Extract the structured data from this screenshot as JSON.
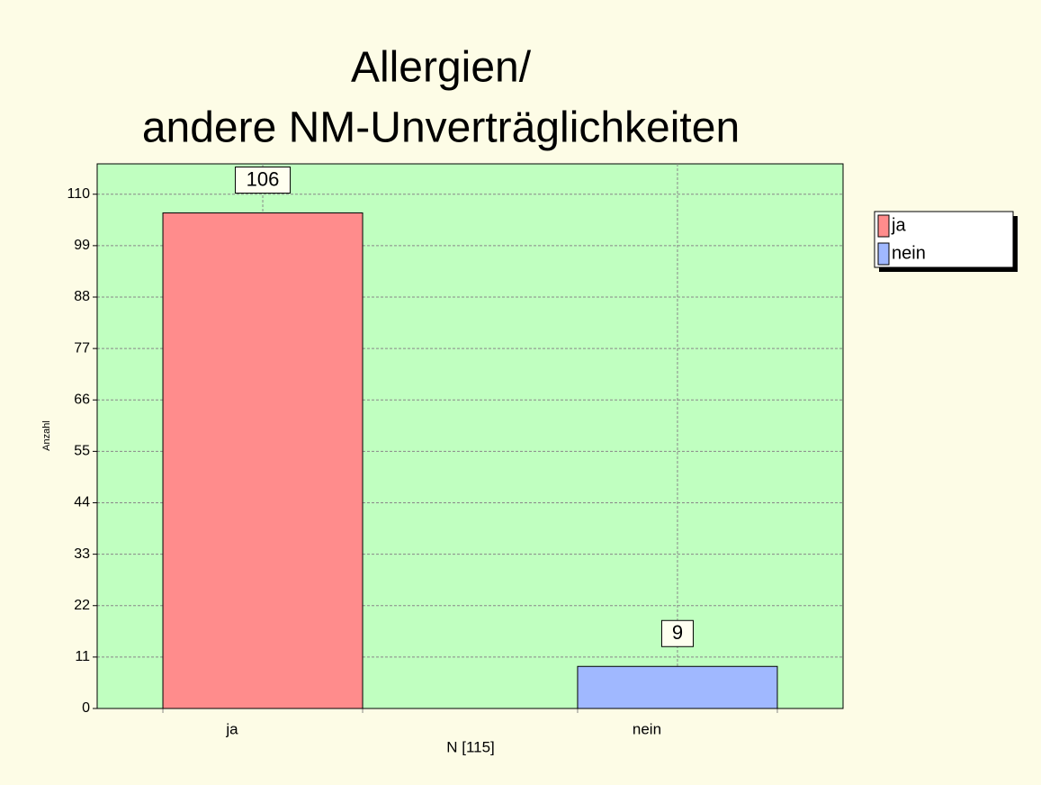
{
  "chart_data": {
    "type": "bar",
    "title": [
      "Allergien/",
      "andere NM-Unverträglichkeiten"
    ],
    "y_label": "Anzahl",
    "x_label": "N [115]",
    "categories": [
      "ja",
      "nein"
    ],
    "values": [
      106,
      9
    ],
    "colors": [
      "#ff8c8c",
      "#a0b8ff"
    ],
    "ylim": [
      0,
      116.5
    ],
    "yticks": [
      0,
      11,
      22,
      33,
      44,
      55,
      66,
      77,
      88,
      99,
      110
    ],
    "grid": true,
    "legend": "right"
  }
}
